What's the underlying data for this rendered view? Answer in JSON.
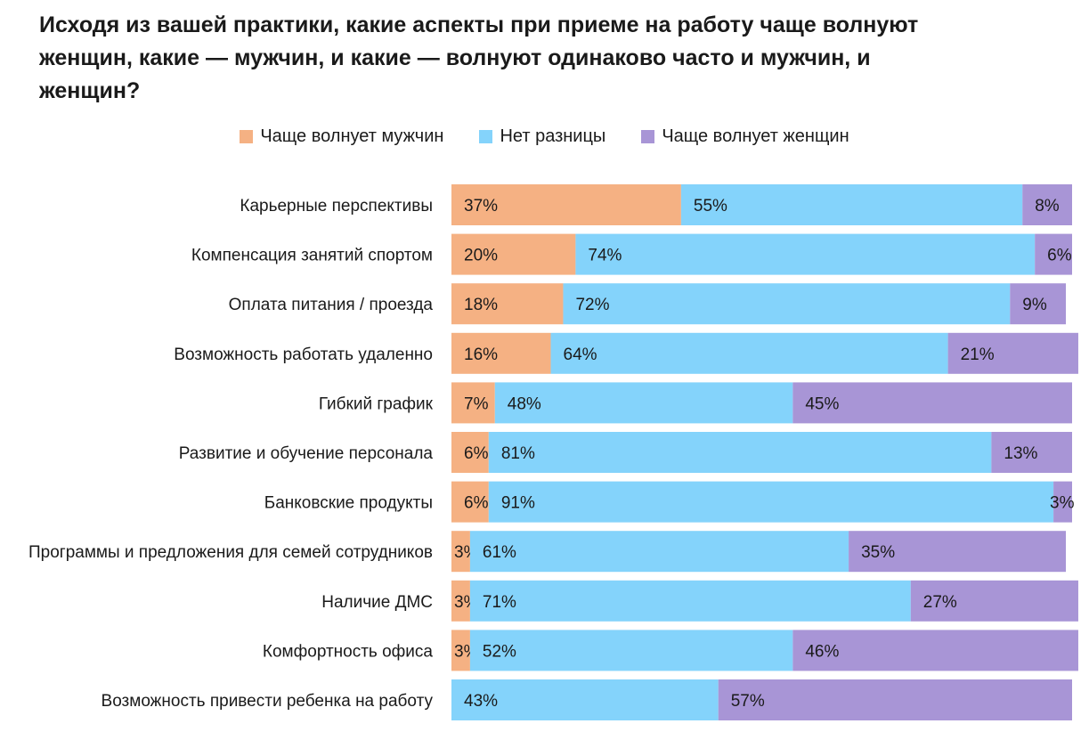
{
  "chart_data": {
    "type": "bar",
    "orientation": "horizontal",
    "stacked": true,
    "title": "Исходя из вашей практики, какие аспекты при приеме на работу чаще волнуют женщин, какие — мужчин, и какие — волнуют одинаково часто и мужчин, и женщин?",
    "xlim": [
      0,
      100
    ],
    "grid": false,
    "legend_position": "top-center",
    "categories": [
      "Карьерные перспективы",
      "Компенсация занятий спортом",
      "Оплата питания / проезда",
      "Возможность работать удаленно",
      "Гибкий график",
      "Развитие и обучение персонала",
      "Банковские продукты",
      "Программы и предложения для семей сотрудников",
      "Наличие ДМС",
      "Комфортность офиса",
      "Возможность привести ребенка на работу"
    ],
    "series": [
      {
        "name": "Чаще волнует мужчин",
        "color": "#f5b183",
        "values": [
          37,
          20,
          18,
          16,
          7,
          6,
          6,
          3,
          3,
          3,
          0
        ]
      },
      {
        "name": "Нет разницы",
        "color": "#84d3fb",
        "values": [
          55,
          74,
          72,
          64,
          48,
          81,
          91,
          61,
          71,
          52,
          43
        ]
      },
      {
        "name": "Чаще волнует женщин",
        "color": "#a895d6",
        "values": [
          8,
          6,
          9,
          21,
          45,
          13,
          3,
          35,
          27,
          46,
          57
        ]
      }
    ]
  }
}
